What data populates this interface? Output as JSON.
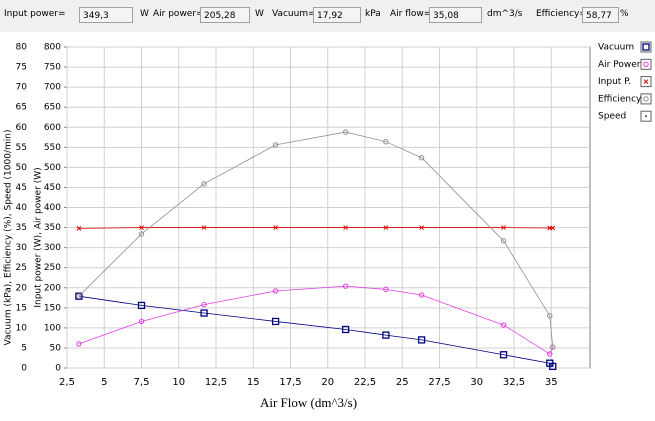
{
  "top_bar": [
    {
      "label": "Input power=",
      "value": "349,3",
      "unit": "W"
    },
    {
      "label": "Air power=",
      "value": "205,28",
      "unit": "W"
    },
    {
      "label": "Vacuum=",
      "value": "17,92",
      "unit": "kPa"
    },
    {
      "label": "Air flow=",
      "value": "35,08",
      "unit": "dm^3/s"
    },
    {
      "label": "Efficiency=",
      "value": "58,77",
      "unit": "%"
    }
  ],
  "chart_data": {
    "type": "line",
    "x_label": "Air Flow (dm^3/s)",
    "y_label": "Vacuum (kPa), Efficiency (%), Speed (1000/min)",
    "y2_label": "Input power (W), Air power (W)",
    "x": [
      3.3,
      7.5,
      11.7,
      16.5,
      21.2,
      23.9,
      26.3,
      31.8,
      34.9,
      35.1
    ],
    "series": [
      {
        "name": "Vacuum",
        "color": "#000080",
        "marker": "square",
        "values": [
          17.9,
          15.6,
          13.7,
          11.6,
          9.6,
          8.2,
          7.0,
          3.3,
          1.2,
          0.4
        ]
      },
      {
        "name": "Air Power",
        "color": "#e040e0",
        "marker": "circle",
        "axis": "y2",
        "values": [
          60,
          116,
          158,
          192,
          204,
          196,
          182,
          107,
          35,
          52
        ]
      },
      {
        "name": "Input P.",
        "color": "#e00000",
        "marker": "cross",
        "axis": "y2",
        "values": [
          348,
          350,
          350,
          350,
          350,
          350,
          350,
          350,
          349,
          349
        ]
      },
      {
        "name": "Efficiency",
        "color": "#909090",
        "marker": "circle",
        "values": [
          17.9,
          33.4,
          45.9,
          55.6,
          58.8,
          56.4,
          52.4,
          31.7,
          13.0,
          5.2
        ]
      },
      {
        "name": "Speed",
        "color": "#404040",
        "marker": "dot",
        "values": [
          null,
          null,
          null,
          null,
          null,
          null,
          null,
          null,
          null,
          null
        ]
      }
    ],
    "xlim": [
      2.5,
      37.6
    ],
    "xticks": [
      {
        "value": 2.5,
        "label": "2,5"
      },
      5,
      {
        "value": 7.5,
        "label": "7,5"
      },
      10,
      {
        "value": 12.5,
        "label": "12,5"
      },
      15,
      {
        "value": 17.5,
        "label": "17,5"
      },
      20,
      {
        "value": 22.5,
        "label": "22,5"
      },
      25,
      {
        "value": 27.5,
        "label": "27,5"
      },
      30,
      {
        "value": 32.5,
        "label": "32,5"
      },
      35
    ],
    "ylim": [
      0,
      80
    ],
    "yticks": [
      0,
      5,
      10,
      15,
      20,
      25,
      30,
      35,
      40,
      45,
      50,
      55,
      60,
      65,
      70,
      75,
      80
    ],
    "y2lim": [
      0,
      800
    ],
    "y2ticks": [
      0,
      50,
      100,
      150,
      200,
      250,
      300,
      350,
      400,
      450,
      500,
      550,
      600,
      650,
      700,
      750,
      800
    ],
    "grid": true,
    "legend": "right"
  }
}
